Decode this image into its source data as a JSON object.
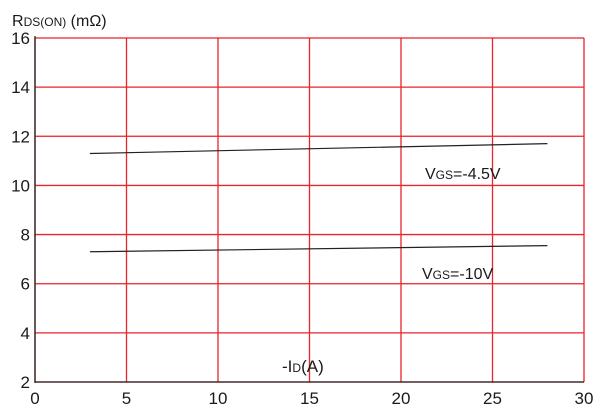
{
  "chart_data": {
    "type": "line",
    "ylabel": {
      "main": "R",
      "sub": "DS(ON)",
      "rest": " (mΩ)"
    },
    "xlabel": {
      "prefix": "-I",
      "sub": "D",
      "rest": "(A)"
    },
    "xlim": [
      0,
      30
    ],
    "ylim": [
      2,
      16
    ],
    "x_ticks": [
      "0",
      "5",
      "10",
      "15",
      "20",
      "25",
      "30"
    ],
    "y_ticks": [
      "2",
      "4",
      "6",
      "8",
      "10",
      "12",
      "14",
      "16"
    ],
    "grid": true,
    "grid_color": "#e8232a",
    "line_color": "#222222",
    "series": [
      {
        "name": {
          "main": "V",
          "sub": "GS",
          "rest": "=-4.5V"
        },
        "x": [
          3,
          28
        ],
        "y": [
          11.3,
          11.7
        ]
      },
      {
        "name": {
          "main": "V",
          "sub": "GS",
          "rest": "=-10V"
        },
        "x": [
          3,
          28
        ],
        "y": [
          7.3,
          7.55
        ]
      }
    ]
  }
}
